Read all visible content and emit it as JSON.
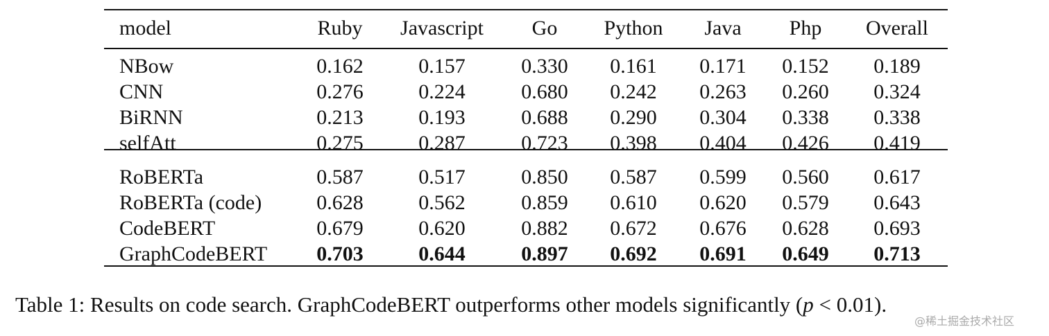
{
  "table": {
    "header": [
      "model",
      "Ruby",
      "Javascript",
      "Go",
      "Python",
      "Java",
      "Php",
      "Overall"
    ],
    "groups": [
      [
        {
          "model": "NBow",
          "scores": [
            "0.162",
            "0.157",
            "0.330",
            "0.161",
            "0.171",
            "0.152",
            "0.189"
          ]
        },
        {
          "model": "CNN",
          "scores": [
            "0.276",
            "0.224",
            "0.680",
            "0.242",
            "0.263",
            "0.260",
            "0.324"
          ]
        },
        {
          "model": "BiRNN",
          "scores": [
            "0.213",
            "0.193",
            "0.688",
            "0.290",
            "0.304",
            "0.338",
            "0.338"
          ]
        },
        {
          "model": "selfAtt",
          "scores": [
            "0.275",
            "0.287",
            "0.723",
            "0.398",
            "0.404",
            "0.426",
            "0.419"
          ]
        }
      ],
      [
        {
          "model": "RoBERTa",
          "scores": [
            "0.587",
            "0.517",
            "0.850",
            "0.587",
            "0.599",
            "0.560",
            "0.617"
          ]
        },
        {
          "model": "RoBERTa (code)",
          "scores": [
            "0.628",
            "0.562",
            "0.859",
            "0.610",
            "0.620",
            "0.579",
            "0.643"
          ]
        },
        {
          "model": "CodeBERT",
          "scores": [
            "0.679",
            "0.620",
            "0.882",
            "0.672",
            "0.676",
            "0.628",
            "0.693"
          ]
        },
        {
          "model": "GraphCodeBERT",
          "scores": [
            "0.703",
            "0.644",
            "0.897",
            "0.692",
            "0.691",
            "0.649",
            "0.713"
          ],
          "bold": true
        }
      ]
    ]
  },
  "caption": {
    "lead": "Table 1: Results on code search. GraphCodeBERT outperforms other models significantly (",
    "math_var": "p",
    "math_rest": " < 0.01",
    "tail": ")."
  },
  "watermark": "@稀土掘金技术社区"
}
